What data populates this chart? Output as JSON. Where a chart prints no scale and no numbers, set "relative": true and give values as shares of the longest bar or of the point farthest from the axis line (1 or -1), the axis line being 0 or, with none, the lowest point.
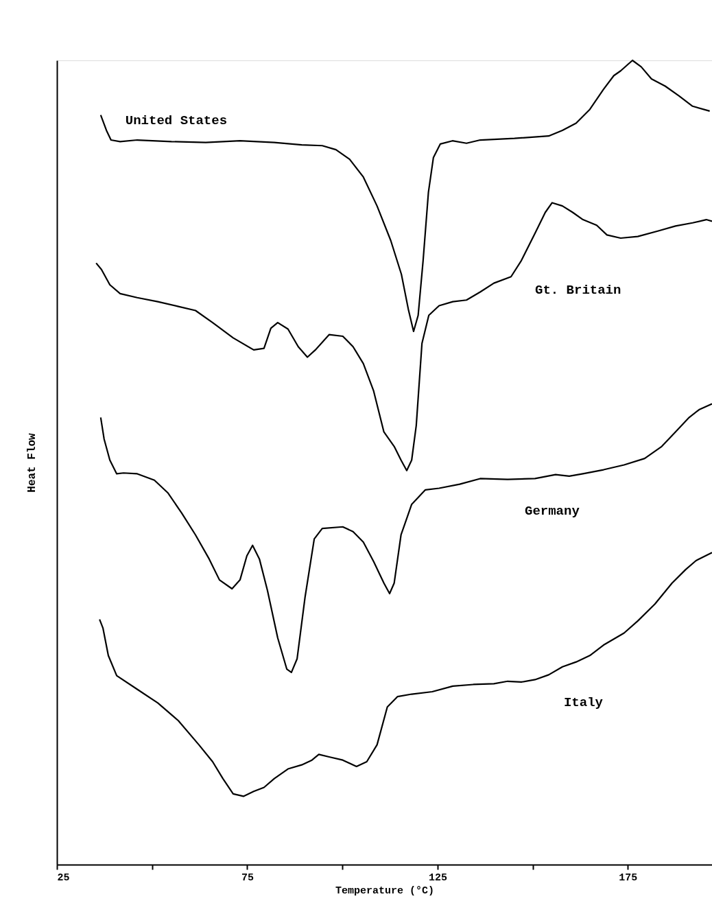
{
  "chart_data": {
    "type": "line",
    "xlabel": "Temperature (°C)",
    "ylabel": "Heat Flow",
    "relative": true,
    "legend": false,
    "grid": false,
    "marker": "none",
    "line_style": "solid",
    "tick_labels": "x",
    "xlim": [
      25,
      197.1
    ],
    "xticks": [
      25,
      {
        "value": 50,
        "label": null
      },
      75,
      {
        "value": 100,
        "label": null
      },
      125,
      {
        "value": 150,
        "label": null
      },
      175
    ],
    "series": [
      {
        "name": "United States",
        "color": "#000000",
        "x": [
          36.5,
          38.0,
          39.2,
          41.6,
          46.1,
          55.1,
          64.1,
          73.1,
          82.1,
          89.3,
          94.7,
          98.3,
          101.9,
          105.5,
          109.1,
          112.7,
          115.5,
          117.3,
          118.7,
          119.9,
          121.2,
          122.6,
          123.9,
          125.7,
          128.9,
          132.6,
          136.2,
          145.2,
          154.2,
          157.8,
          161.4,
          165.0,
          168.6,
          171.3,
          173.1,
          176.2,
          178.5,
          181.2,
          184.8,
          188.4,
          192.0,
          196.5
        ],
        "values": [
          0.932,
          0.913,
          0.901,
          0.899,
          0.901,
          0.899,
          0.898,
          0.9,
          0.898,
          0.895,
          0.894,
          0.889,
          0.877,
          0.855,
          0.819,
          0.776,
          0.734,
          0.691,
          0.663,
          0.683,
          0.751,
          0.836,
          0.879,
          0.896,
          0.9,
          0.897,
          0.901,
          0.903,
          0.906,
          0.913,
          0.922,
          0.939,
          0.964,
          0.981,
          0.987,
          1.0,
          0.992,
          0.977,
          0.968,
          0.956,
          0.943,
          0.937
        ]
      },
      {
        "name": "Gt. Britain",
        "color": "#000000",
        "x": [
          35.3,
          36.7,
          38.9,
          41.6,
          46.1,
          51.5,
          56.9,
          61.4,
          65.9,
          71.3,
          76.7,
          79.4,
          81.2,
          83.0,
          85.7,
          88.4,
          90.8,
          92.9,
          96.5,
          100.1,
          102.8,
          105.5,
          108.2,
          110.9,
          113.6,
          115.4,
          116.9,
          118.2,
          119.4,
          120.9,
          122.7,
          125.4,
          129.0,
          132.6,
          136.2,
          139.8,
          144.3,
          147.0,
          150.6,
          153.3,
          155.1,
          157.8,
          160.5,
          163.2,
          166.8,
          169.5,
          173.1,
          177.6,
          183.0,
          187.5,
          192.0,
          195.6,
          197.1
        ],
        "values": [
          0.748,
          0.74,
          0.721,
          0.71,
          0.705,
          0.7,
          0.694,
          0.689,
          0.674,
          0.655,
          0.64,
          0.642,
          0.667,
          0.674,
          0.666,
          0.644,
          0.631,
          0.64,
          0.659,
          0.657,
          0.644,
          0.623,
          0.589,
          0.538,
          0.52,
          0.503,
          0.49,
          0.503,
          0.546,
          0.648,
          0.683,
          0.695,
          0.7,
          0.702,
          0.712,
          0.723,
          0.731,
          0.751,
          0.785,
          0.811,
          0.823,
          0.819,
          0.811,
          0.802,
          0.795,
          0.783,
          0.779,
          0.781,
          0.788,
          0.794,
          0.798,
          0.802,
          0.8
        ]
      },
      {
        "name": "Germany",
        "color": "#000000",
        "x": [
          36.5,
          37.4,
          38.9,
          40.7,
          42.5,
          46.1,
          50.6,
          54.2,
          57.8,
          61.4,
          65.0,
          67.7,
          71.0,
          73.1,
          74.9,
          76.4,
          78.2,
          80.3,
          83.0,
          85.4,
          86.6,
          88.1,
          90.2,
          92.6,
          94.7,
          100.1,
          102.8,
          105.5,
          108.2,
          110.9,
          112.4,
          113.6,
          115.4,
          118.2,
          121.8,
          125.4,
          130.8,
          136.2,
          143.4,
          150.6,
          156.0,
          159.6,
          163.2,
          168.6,
          174.0,
          179.4,
          183.9,
          187.5,
          191.1,
          193.8,
          197.1
        ],
        "values": [
          0.556,
          0.529,
          0.503,
          0.486,
          0.487,
          0.486,
          0.478,
          0.462,
          0.437,
          0.41,
          0.38,
          0.354,
          0.343,
          0.354,
          0.384,
          0.397,
          0.38,
          0.341,
          0.282,
          0.243,
          0.239,
          0.256,
          0.333,
          0.405,
          0.418,
          0.42,
          0.414,
          0.401,
          0.377,
          0.35,
          0.337,
          0.35,
          0.41,
          0.448,
          0.466,
          0.468,
          0.473,
          0.48,
          0.479,
          0.48,
          0.485,
          0.483,
          0.486,
          0.491,
          0.497,
          0.505,
          0.52,
          0.538,
          0.556,
          0.566,
          0.573
        ]
      },
      {
        "name": "Italy",
        "color": "#000000",
        "x": [
          36.2,
          37.1,
          38.5,
          40.7,
          46.1,
          51.5,
          56.9,
          62.3,
          65.9,
          68.6,
          71.3,
          74.0,
          76.7,
          79.4,
          82.1,
          85.7,
          89.3,
          92.0,
          93.8,
          96.5,
          100.1,
          103.7,
          106.4,
          109.1,
          111.8,
          114.5,
          118.2,
          123.6,
          129.0,
          134.4,
          139.8,
          143.4,
          147.0,
          150.6,
          154.2,
          157.8,
          161.4,
          165.0,
          168.6,
          174.0,
          177.6,
          182.1,
          186.6,
          190.2,
          192.9,
          197.1
        ],
        "values": [
          0.305,
          0.294,
          0.26,
          0.235,
          0.218,
          0.201,
          0.179,
          0.149,
          0.128,
          0.107,
          0.088,
          0.085,
          0.091,
          0.096,
          0.107,
          0.119,
          0.124,
          0.13,
          0.137,
          0.134,
          0.13,
          0.122,
          0.128,
          0.149,
          0.196,
          0.209,
          0.212,
          0.215,
          0.222,
          0.224,
          0.225,
          0.228,
          0.227,
          0.23,
          0.236,
          0.246,
          0.252,
          0.26,
          0.273,
          0.288,
          0.303,
          0.324,
          0.35,
          0.367,
          0.378,
          0.388
        ]
      }
    ]
  }
}
